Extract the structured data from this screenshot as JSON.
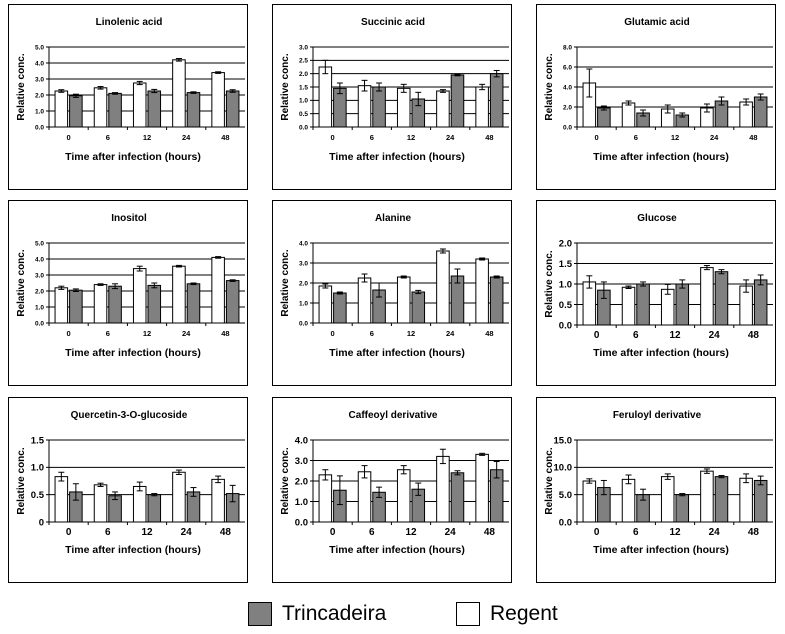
{
  "legend": {
    "trincadeira": "Trincadeira",
    "regent": "Regent"
  },
  "colors": {
    "trincadeira": "#808080",
    "regent": "#ffffff"
  },
  "chart_data": [
    {
      "type": "bar",
      "title": "Linolenic acid",
      "xlabel": "Time after infection (hours)",
      "ylabel": "Relative conc.",
      "categories": [
        "0",
        "6",
        "12",
        "24",
        "48"
      ],
      "ylim": [
        0,
        5
      ],
      "yticks": [
        "0.0",
        "1.0",
        "2.0",
        "3.0",
        "4.0",
        "5.0"
      ],
      "series": [
        {
          "name": "Regent",
          "values": [
            2.25,
            2.45,
            2.75,
            4.2,
            3.4
          ],
          "errors": [
            0.08,
            0.08,
            0.1,
            0.08,
            0.05
          ]
        },
        {
          "name": "Trincadeira",
          "values": [
            1.95,
            2.1,
            2.25,
            2.15,
            2.25
          ],
          "errors": [
            0.1,
            0.05,
            0.1,
            0.05,
            0.08
          ]
        }
      ]
    },
    {
      "type": "bar",
      "title": "Succinic acid",
      "xlabel": "Time after infection (hours)",
      "ylabel": "Relative conc.",
      "categories": [
        "0",
        "6",
        "12",
        "24",
        "48"
      ],
      "ylim": [
        0,
        3
      ],
      "yticks": [
        "0.0",
        "0.5",
        "1.0",
        "1.5",
        "2.0",
        "2.5",
        "3.0"
      ],
      "series": [
        {
          "name": "Regent",
          "values": [
            2.25,
            1.55,
            1.45,
            1.35,
            1.5
          ],
          "errors": [
            0.25,
            0.2,
            0.15,
            0.05,
            0.1
          ]
        },
        {
          "name": "Trincadeira",
          "values": [
            1.45,
            1.5,
            1.05,
            1.95,
            2.0
          ],
          "errors": [
            0.2,
            0.15,
            0.25,
            0.03,
            0.12
          ]
        }
      ]
    },
    {
      "type": "bar",
      "title": "Glutamic acid",
      "xlabel": "Time after infection (hours)",
      "ylabel": "Relative conc.",
      "categories": [
        "0",
        "6",
        "12",
        "24",
        "48"
      ],
      "ylim": [
        0,
        8
      ],
      "yticks": [
        "0.0",
        "2.0",
        "4.0",
        "6.0",
        "8.0"
      ],
      "series": [
        {
          "name": "Regent",
          "values": [
            4.4,
            2.4,
            1.8,
            1.9,
            2.5
          ],
          "errors": [
            1.4,
            0.2,
            0.4,
            0.4,
            0.3
          ]
        },
        {
          "name": "Trincadeira",
          "values": [
            1.9,
            1.4,
            1.2,
            2.6,
            3.0
          ],
          "errors": [
            0.2,
            0.3,
            0.2,
            0.4,
            0.3
          ]
        }
      ]
    },
    {
      "type": "bar",
      "title": "Inositol",
      "xlabel": "Time after infection (hours)",
      "ylabel": "Relative conc.",
      "categories": [
        "0",
        "6",
        "12",
        "24",
        "48"
      ],
      "ylim": [
        0,
        5
      ],
      "yticks": [
        "0.0",
        "1.0",
        "2.0",
        "3.0",
        "4.0",
        "5.0"
      ],
      "series": [
        {
          "name": "Regent",
          "values": [
            2.2,
            2.4,
            3.4,
            3.55,
            4.1
          ],
          "errors": [
            0.1,
            0.05,
            0.15,
            0.05,
            0.05
          ]
        },
        {
          "name": "Trincadeira",
          "values": [
            2.05,
            2.3,
            2.35,
            2.45,
            2.65
          ],
          "errors": [
            0.08,
            0.15,
            0.15,
            0.05,
            0.05
          ]
        }
      ]
    },
    {
      "type": "bar",
      "title": "Alanine",
      "xlabel": "Time after infection (hours)",
      "ylabel": "Relative conc.",
      "categories": [
        "0",
        "6",
        "12",
        "24",
        "48"
      ],
      "ylim": [
        0,
        4
      ],
      "yticks": [
        "0.0",
        "1.0",
        "2.0",
        "3.0",
        "4.0"
      ],
      "series": [
        {
          "name": "Regent",
          "values": [
            1.85,
            2.25,
            2.3,
            3.6,
            3.2
          ],
          "errors": [
            0.1,
            0.2,
            0.05,
            0.1,
            0.05
          ]
        },
        {
          "name": "Trincadeira",
          "values": [
            1.5,
            1.65,
            1.55,
            2.35,
            2.3
          ],
          "errors": [
            0.05,
            0.35,
            0.08,
            0.35,
            0.05
          ]
        }
      ]
    },
    {
      "type": "bar",
      "title": "Glucose",
      "xlabel": "Time after infection (hours)",
      "ylabel": "Relative conc.",
      "categories": [
        "0",
        "6",
        "12",
        "24",
        "48"
      ],
      "ylim": [
        0,
        2
      ],
      "yticks": [
        "0.0",
        "0.5",
        "1.0",
        "1.5",
        "2.0"
      ],
      "series": [
        {
          "name": "Regent",
          "values": [
            1.05,
            0.92,
            0.87,
            1.4,
            0.95
          ],
          "errors": [
            0.15,
            0.03,
            0.12,
            0.05,
            0.15
          ]
        },
        {
          "name": "Trincadeira",
          "values": [
            0.85,
            1.0,
            1.0,
            1.3,
            1.1
          ],
          "errors": [
            0.2,
            0.05,
            0.1,
            0.05,
            0.12
          ]
        }
      ]
    },
    {
      "type": "bar",
      "title": "Quercetin-3-O-glucoside",
      "xlabel": "Time after infection (hours)",
      "ylabel": "Relative conc.",
      "categories": [
        "0",
        "6",
        "12",
        "24",
        "48"
      ],
      "ylim": [
        0,
        1.5
      ],
      "yticks": [
        "0",
        "0.5",
        "1.0",
        "1.5"
      ],
      "series": [
        {
          "name": "Regent",
          "values": [
            0.83,
            0.68,
            0.65,
            0.91,
            0.78
          ],
          "errors": [
            0.08,
            0.03,
            0.08,
            0.04,
            0.06
          ]
        },
        {
          "name": "Trincadeira",
          "values": [
            0.55,
            0.48,
            0.5,
            0.55,
            0.52
          ],
          "errors": [
            0.15,
            0.07,
            0.02,
            0.08,
            0.15
          ]
        }
      ]
    },
    {
      "type": "bar",
      "title": "Caffeoyl derivative",
      "xlabel": "Time after infection (hours)",
      "ylabel": "Relative conc.",
      "categories": [
        "0",
        "6",
        "12",
        "24",
        "48"
      ],
      "ylim": [
        0,
        4
      ],
      "yticks": [
        "0.0",
        "1.0",
        "2.0",
        "3.0",
        "4.0"
      ],
      "series": [
        {
          "name": "Regent",
          "values": [
            2.3,
            2.45,
            2.55,
            3.2,
            3.3
          ],
          "errors": [
            0.25,
            0.3,
            0.2,
            0.35,
            0.05
          ]
        },
        {
          "name": "Trincadeira",
          "values": [
            1.55,
            1.45,
            1.6,
            2.4,
            2.55
          ],
          "errors": [
            0.7,
            0.25,
            0.3,
            0.1,
            0.4
          ]
        }
      ]
    },
    {
      "type": "bar",
      "title": "Feruloyl derivative",
      "xlabel": "Time after infection (hours)",
      "ylabel": "Relative conc.",
      "categories": [
        "0",
        "6",
        "12",
        "24",
        "48"
      ],
      "ylim": [
        0,
        15
      ],
      "yticks": [
        "0.0",
        "5.0",
        "10.0",
        "15.0"
      ],
      "series": [
        {
          "name": "Regent",
          "values": [
            7.5,
            7.8,
            8.3,
            9.3,
            8.0
          ],
          "errors": [
            0.4,
            0.8,
            0.5,
            0.4,
            0.8
          ]
        },
        {
          "name": "Trincadeira",
          "values": [
            6.3,
            5.0,
            5.0,
            8.3,
            7.6
          ],
          "errors": [
            1.3,
            1.0,
            0.2,
            0.2,
            0.8
          ]
        }
      ]
    }
  ]
}
